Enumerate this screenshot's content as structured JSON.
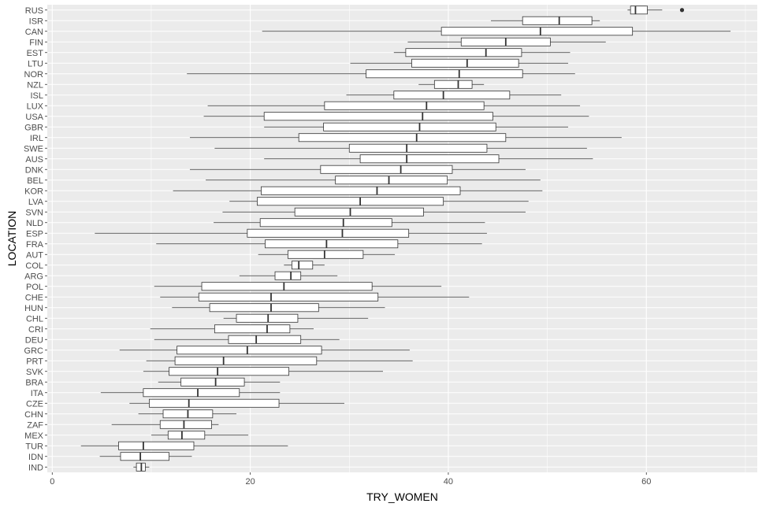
{
  "chart_data": {
    "type": "boxplot",
    "orientation": "horizontal",
    "xlabel": "TRY_WOMEN",
    "ylabel": "LOCATION",
    "xlim": [
      -0.5,
      71.2
    ],
    "xticks": [
      0,
      20,
      40,
      60
    ],
    "grid": true,
    "panel_background": "#ebebeb",
    "grid_color": "#ffffff",
    "box_fill": "#ffffff",
    "line_color": "#333333",
    "categories": [
      "RUS",
      "ISR",
      "CAN",
      "FIN",
      "EST",
      "LTU",
      "NOR",
      "NZL",
      "ISL",
      "LUX",
      "USA",
      "GBR",
      "IRL",
      "SWE",
      "AUS",
      "DNK",
      "BEL",
      "KOR",
      "LVA",
      "SVN",
      "NLD",
      "ESP",
      "FRA",
      "AUT",
      "COL",
      "ARG",
      "POL",
      "CHE",
      "HUN",
      "CHL",
      "CRI",
      "DEU",
      "GRC",
      "PRT",
      "SVK",
      "BRA",
      "ITA",
      "CZE",
      "CHN",
      "ZAF",
      "MEX",
      "TUR",
      "IDN",
      "IND"
    ],
    "boxes": [
      {
        "label": "RUS",
        "min": 58.1,
        "q1": 58.4,
        "median": 58.9,
        "q3": 60.1,
        "max": 61.6,
        "outliers": [
          63.6
        ]
      },
      {
        "label": "ISR",
        "min": 44.3,
        "q1": 47.5,
        "median": 51.2,
        "q3": 54.5,
        "max": 55.3,
        "outliers": []
      },
      {
        "label": "CAN",
        "min": 21.2,
        "q1": 39.3,
        "median": 49.3,
        "q3": 58.6,
        "max": 68.5,
        "outliers": []
      },
      {
        "label": "FIN",
        "min": 35.9,
        "q1": 41.3,
        "median": 45.8,
        "q3": 50.3,
        "max": 55.9,
        "outliers": []
      },
      {
        "label": "EST",
        "min": 34.5,
        "q1": 35.7,
        "median": 43.8,
        "q3": 47.4,
        "max": 52.3,
        "outliers": []
      },
      {
        "label": "LTU",
        "min": 30.1,
        "q1": 36.3,
        "median": 41.9,
        "q3": 47.1,
        "max": 52.1,
        "outliers": []
      },
      {
        "label": "NOR",
        "min": 13.6,
        "q1": 31.7,
        "median": 41.1,
        "q3": 47.5,
        "max": 52.8,
        "outliers": []
      },
      {
        "label": "NZL",
        "min": 37.0,
        "q1": 38.6,
        "median": 41.0,
        "q3": 42.4,
        "max": 43.6,
        "outliers": []
      },
      {
        "label": "ISL",
        "min": 29.7,
        "q1": 34.5,
        "median": 39.5,
        "q3": 46.2,
        "max": 51.4,
        "outliers": []
      },
      {
        "label": "LUX",
        "min": 15.7,
        "q1": 27.5,
        "median": 37.8,
        "q3": 43.6,
        "max": 53.3,
        "outliers": []
      },
      {
        "label": "USA",
        "min": 15.3,
        "q1": 21.4,
        "median": 37.4,
        "q3": 44.5,
        "max": 54.2,
        "outliers": []
      },
      {
        "label": "GBR",
        "min": 21.4,
        "q1": 27.4,
        "median": 37.1,
        "q3": 44.8,
        "max": 52.1,
        "outliers": []
      },
      {
        "label": "IRL",
        "min": 13.9,
        "q1": 24.9,
        "median": 36.8,
        "q3": 45.8,
        "max": 57.5,
        "outliers": []
      },
      {
        "label": "SWE",
        "min": 16.4,
        "q1": 30.0,
        "median": 35.8,
        "q3": 43.9,
        "max": 54.0,
        "outliers": []
      },
      {
        "label": "AUS",
        "min": 21.4,
        "q1": 31.1,
        "median": 35.8,
        "q3": 45.1,
        "max": 54.6,
        "outliers": []
      },
      {
        "label": "DNK",
        "min": 13.9,
        "q1": 27.1,
        "median": 35.2,
        "q3": 40.4,
        "max": 47.8,
        "outliers": []
      },
      {
        "label": "BEL",
        "min": 15.5,
        "q1": 28.6,
        "median": 34.0,
        "q3": 39.9,
        "max": 49.3,
        "outliers": []
      },
      {
        "label": "KOR",
        "min": 12.2,
        "q1": 21.1,
        "median": 32.8,
        "q3": 41.2,
        "max": 49.5,
        "outliers": []
      },
      {
        "label": "LVA",
        "min": 17.9,
        "q1": 20.7,
        "median": 31.1,
        "q3": 39.5,
        "max": 48.1,
        "outliers": []
      },
      {
        "label": "SVN",
        "min": 17.2,
        "q1": 24.5,
        "median": 30.1,
        "q3": 37.5,
        "max": 47.8,
        "outliers": []
      },
      {
        "label": "NLD",
        "min": 16.3,
        "q1": 21.0,
        "median": 29.4,
        "q3": 34.3,
        "max": 43.7,
        "outliers": []
      },
      {
        "label": "ESP",
        "min": 4.3,
        "q1": 19.7,
        "median": 29.3,
        "q3": 36.0,
        "max": 43.9,
        "outliers": []
      },
      {
        "label": "FRA",
        "min": 10.5,
        "q1": 21.5,
        "median": 27.7,
        "q3": 34.9,
        "max": 43.4,
        "outliers": []
      },
      {
        "label": "AUT",
        "min": 20.8,
        "q1": 23.8,
        "median": 27.5,
        "q3": 31.4,
        "max": 34.6,
        "outliers": []
      },
      {
        "label": "COL",
        "min": 23.4,
        "q1": 24.2,
        "median": 24.9,
        "q3": 26.3,
        "max": 27.5,
        "outliers": []
      },
      {
        "label": "ARG",
        "min": 18.9,
        "q1": 22.5,
        "median": 24.1,
        "q3": 25.1,
        "max": 28.8,
        "outliers": []
      },
      {
        "label": "POL",
        "min": 10.3,
        "q1": 15.1,
        "median": 23.4,
        "q3": 32.3,
        "max": 39.3,
        "outliers": []
      },
      {
        "label": "CHE",
        "min": 10.9,
        "q1": 14.8,
        "median": 22.1,
        "q3": 32.9,
        "max": 42.1,
        "outliers": []
      },
      {
        "label": "HUN",
        "min": 12.1,
        "q1": 15.9,
        "median": 22.1,
        "q3": 26.9,
        "max": 33.6,
        "outliers": []
      },
      {
        "label": "CHL",
        "min": 17.3,
        "q1": 18.6,
        "median": 21.8,
        "q3": 24.8,
        "max": 31.9,
        "outliers": []
      },
      {
        "label": "CRI",
        "min": 9.9,
        "q1": 16.4,
        "median": 21.7,
        "q3": 24.0,
        "max": 26.4,
        "outliers": []
      },
      {
        "label": "DEU",
        "min": 10.3,
        "q1": 17.8,
        "median": 20.6,
        "q3": 25.1,
        "max": 29.0,
        "outliers": []
      },
      {
        "label": "GRC",
        "min": 6.8,
        "q1": 12.6,
        "median": 19.7,
        "q3": 27.2,
        "max": 36.1,
        "outliers": []
      },
      {
        "label": "PRT",
        "min": 9.5,
        "q1": 12.4,
        "median": 17.3,
        "q3": 26.7,
        "max": 36.4,
        "outliers": []
      },
      {
        "label": "SVK",
        "min": 9.2,
        "q1": 11.8,
        "median": 16.7,
        "q3": 23.9,
        "max": 33.4,
        "outliers": []
      },
      {
        "label": "BRA",
        "min": 10.7,
        "q1": 13.0,
        "median": 16.5,
        "q3": 19.4,
        "max": 23.0,
        "outliers": []
      },
      {
        "label": "ITA",
        "min": 4.9,
        "q1": 9.2,
        "median": 14.7,
        "q3": 18.9,
        "max": 23.0,
        "outliers": []
      },
      {
        "label": "CZE",
        "min": 7.8,
        "q1": 9.8,
        "median": 13.8,
        "q3": 22.9,
        "max": 29.5,
        "outliers": []
      },
      {
        "label": "CHN",
        "min": 8.7,
        "q1": 11.2,
        "median": 13.7,
        "q3": 16.2,
        "max": 18.6,
        "outliers": []
      },
      {
        "label": "ZAF",
        "min": 6.0,
        "q1": 10.9,
        "median": 13.3,
        "q3": 16.1,
        "max": 16.8,
        "outliers": []
      },
      {
        "label": "MEX",
        "min": 10.0,
        "q1": 11.7,
        "median": 13.1,
        "q3": 15.4,
        "max": 19.8,
        "outliers": []
      },
      {
        "label": "TUR",
        "min": 2.9,
        "q1": 6.7,
        "median": 9.2,
        "q3": 14.3,
        "max": 23.8,
        "outliers": []
      },
      {
        "label": "IDN",
        "min": 4.8,
        "q1": 6.9,
        "median": 8.9,
        "q3": 11.8,
        "max": 14.1,
        "outliers": []
      },
      {
        "label": "IND",
        "min": 8.2,
        "q1": 8.5,
        "median": 9.0,
        "q3": 9.4,
        "max": 9.8,
        "outliers": []
      }
    ]
  }
}
